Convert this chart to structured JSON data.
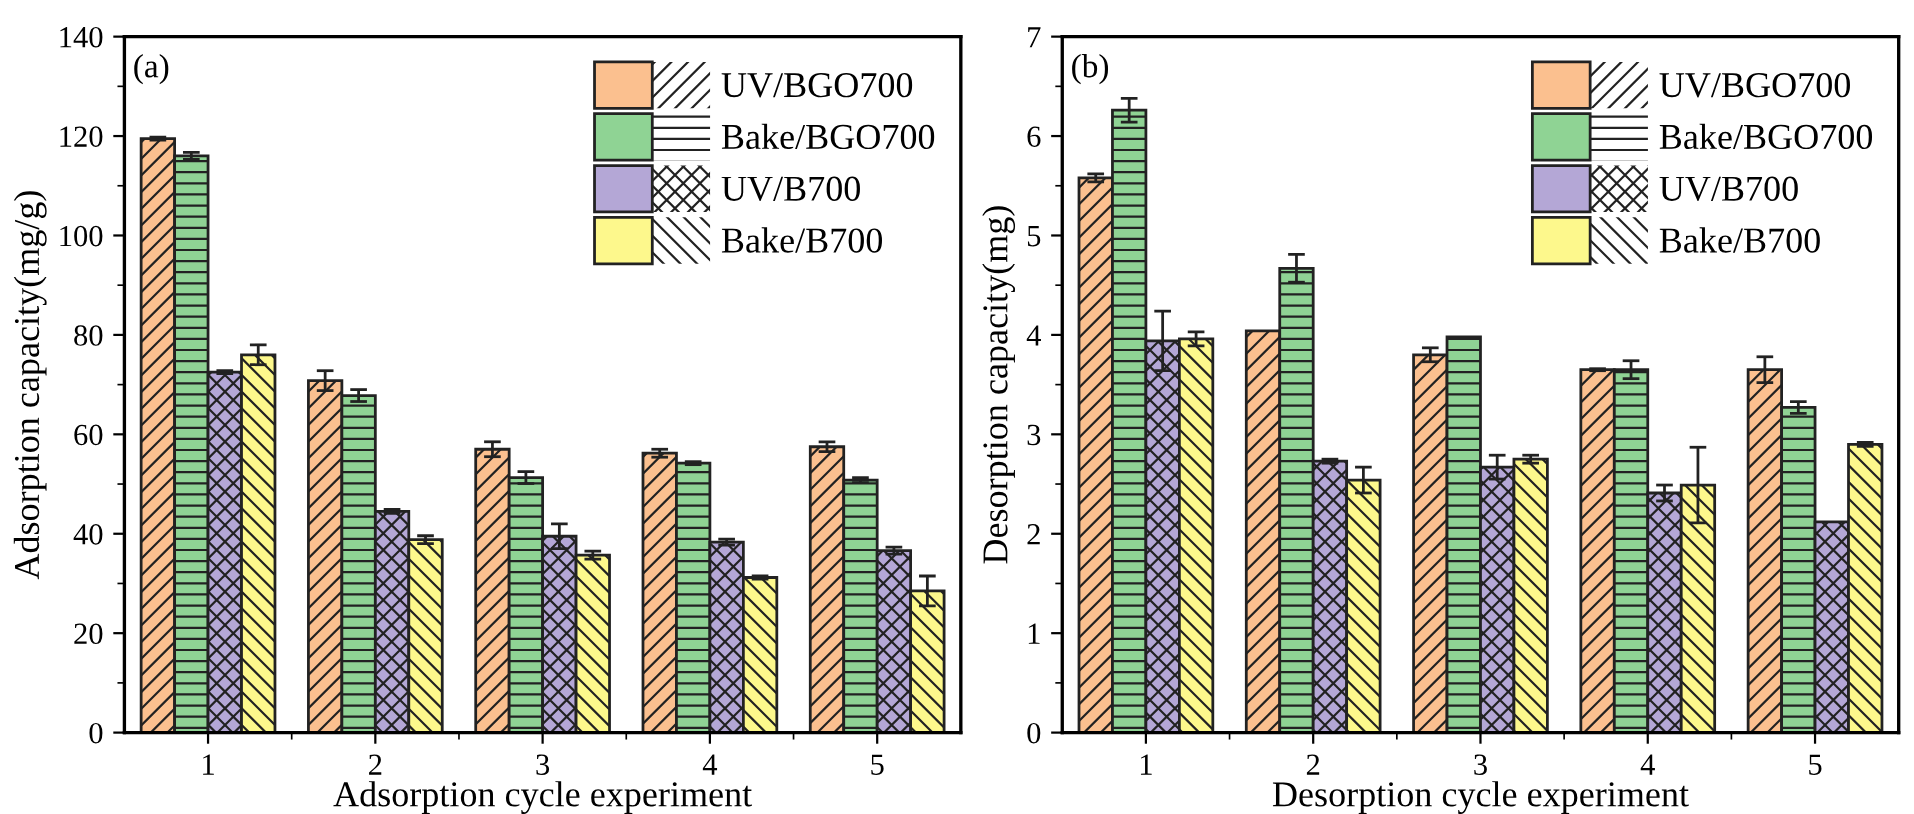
{
  "chart_data": [
    {
      "type": "bar",
      "xlabel": "Adsorption cycle experiment",
      "ylabel": "Adsorption capacity(mg/g)",
      "annotations": [
        "(a)"
      ],
      "categories": [
        "1",
        "2",
        "3",
        "4",
        "5"
      ],
      "ylim": [
        0,
        140
      ],
      "yticks": [
        0,
        20,
        40,
        60,
        80,
        100,
        120,
        140
      ],
      "legend": "top right",
      "grid": false,
      "series": [
        {
          "name": "UV/BGO700",
          "color": "#fbc08f",
          "values": [
            119.5,
            70.8,
            57.0,
            56.2,
            57.5
          ],
          "errors": [
            0.3,
            2.0,
            1.5,
            0.8,
            1.0
          ]
        },
        {
          "name": "Bake/BGO700",
          "color": "#8fd394",
          "values": [
            116.0,
            67.8,
            51.3,
            54.2,
            50.8
          ],
          "errors": [
            0.7,
            1.2,
            1.2,
            0.3,
            0.5
          ]
        },
        {
          "name": "UV/B700",
          "color": "#b4a7d6",
          "values": [
            72.5,
            44.5,
            39.5,
            38.3,
            36.6
          ],
          "errors": [
            0.3,
            0.4,
            2.5,
            0.6,
            0.7
          ]
        },
        {
          "name": "Bake/B700",
          "color": "#fdf88c",
          "values": [
            76.0,
            38.8,
            35.7,
            31.2,
            28.5
          ],
          "errors": [
            2.0,
            0.8,
            0.8,
            0.3,
            3.0
          ]
        }
      ]
    },
    {
      "type": "bar",
      "xlabel": "Desorption cycle experiment",
      "ylabel": "Desorption capacity(mg)",
      "annotations": [
        "(b)"
      ],
      "categories": [
        "1",
        "2",
        "3",
        "4",
        "5"
      ],
      "ylim": [
        0,
        7
      ],
      "yticks": [
        0,
        1,
        2,
        3,
        4,
        5,
        6,
        7
      ],
      "legend": "top right",
      "grid": false,
      "series": [
        {
          "name": "UV/BGO700",
          "color": "#fbc08f",
          "values": [
            5.58,
            4.04,
            3.8,
            3.65,
            3.65
          ],
          "errors": [
            0.04,
            null,
            0.07,
            0.01,
            0.13
          ]
        },
        {
          "name": "Bake/BGO700",
          "color": "#8fd394",
          "values": [
            6.26,
            4.67,
            3.98,
            3.65,
            3.27
          ],
          "errors": [
            0.12,
            0.14,
            null,
            0.09,
            0.06
          ]
        },
        {
          "name": "UV/B700",
          "color": "#b4a7d6",
          "values": [
            3.94,
            2.73,
            2.67,
            2.41,
            2.12
          ],
          "errors": [
            0.3,
            0.02,
            0.12,
            0.08,
            null
          ]
        },
        {
          "name": "Bake/B700",
          "color": "#fdf88c",
          "values": [
            3.96,
            2.54,
            2.75,
            2.49,
            2.9
          ],
          "errors": [
            0.07,
            0.13,
            0.04,
            0.38,
            0.02
          ]
        }
      ]
    }
  ]
}
